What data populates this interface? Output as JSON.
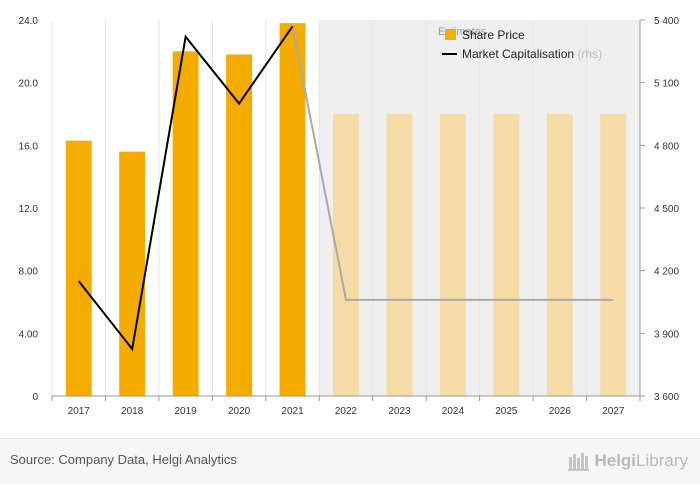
{
  "chart_data": {
    "type": "bar",
    "categories": [
      "2017",
      "2018",
      "2019",
      "2020",
      "2021",
      "2022",
      "2023",
      "2024",
      "2025",
      "2026",
      "2027"
    ],
    "estimates_label": "Estimates",
    "estimates_from": "2022",
    "series": [
      {
        "name": "Share Price",
        "type": "bar",
        "axis": "left",
        "color": "#f5ac00",
        "estimate_color": "#f5dca7",
        "values": [
          16.3,
          15.6,
          22.0,
          21.8,
          23.8,
          18.0,
          18.0,
          18.0,
          18.0,
          18.0,
          18.0
        ]
      },
      {
        "name": "Market Capitalisation",
        "name_suffix": "(rhs)",
        "type": "line",
        "axis": "right",
        "color": "#000000",
        "estimate_color": "#a9a9a9",
        "values": [
          4150,
          3825,
          5320,
          5000,
          5370,
          4060,
          4060,
          4060,
          4060,
          4060,
          4060
        ]
      }
    ],
    "y_left": {
      "ylim": [
        0,
        24
      ],
      "ticks": [
        "0",
        "4.00",
        "8.00",
        "12.0",
        "16.0",
        "20.0",
        "24.0"
      ]
    },
    "y_right": {
      "ylim": [
        3600,
        5400
      ],
      "ticks": [
        "3 600",
        "3 900",
        "4 200",
        "4 500",
        "4 800",
        "5 100",
        "5 400"
      ]
    },
    "grid": true,
    "legend_position": "top-right"
  },
  "footer": {
    "source": "Source: Company Data, Helgi Analytics",
    "logo_part1": "Helgi",
    "logo_part2": "Library"
  }
}
